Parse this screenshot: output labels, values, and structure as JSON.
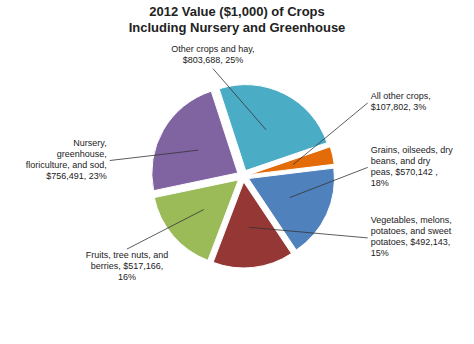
{
  "chart_data": {
    "type": "pie",
    "title": "2012 Value ($1,000) of Crops\nIncluding Nursery and Greenhouse",
    "categories": [
      "Other crops and hay,\n$803,688, 25%",
      "All other crops,\n$107,802, 3%",
      "Grains, oilseeds, dry\nbeans, and dry\npeas, $570,142 ,\n18%",
      "Vegetables, melons,\npotatoes, and sweet\npotatoes, $492,143,\n15%",
      "Fruits, tree nuts, and\nberries, $517,166,\n16%",
      "Nursery,\ngreenhouse,\nfloriculture, and sod,\n$756,491, 23%"
    ],
    "values": [
      803688,
      107802,
      570142,
      492143,
      517166,
      756491
    ],
    "colors": [
      "#4BACC6",
      "#E36C09",
      "#4F81BD",
      "#953735",
      "#9BBB59",
      "#8064A2"
    ]
  }
}
